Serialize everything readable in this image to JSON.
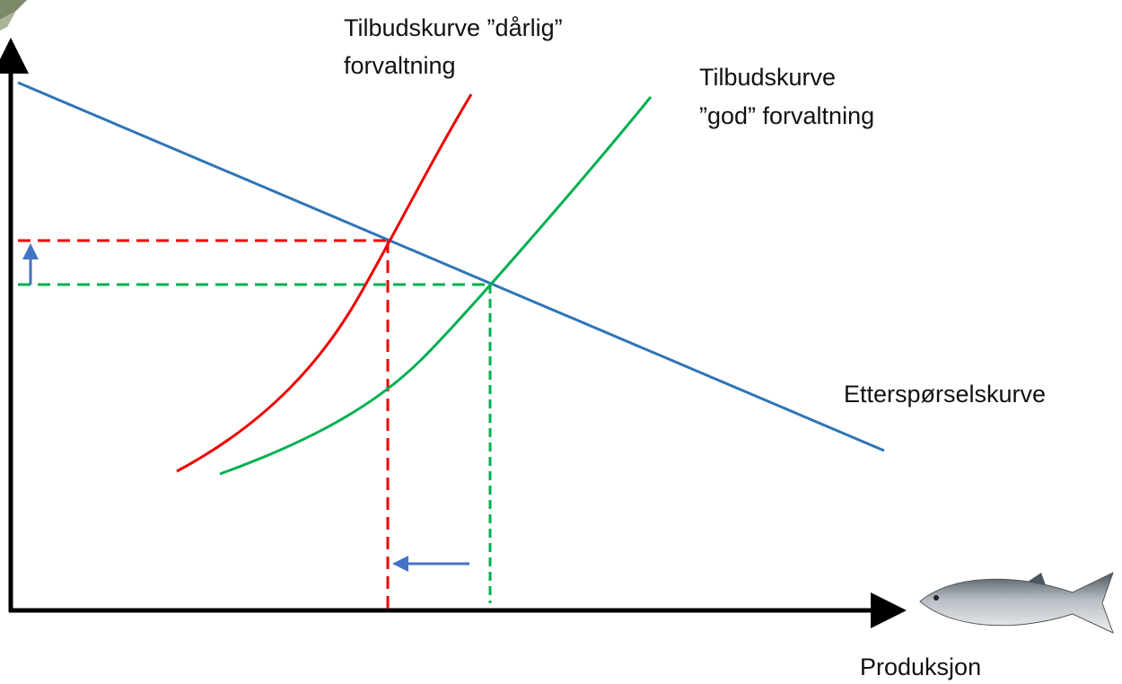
{
  "labels": {
    "supply_bad": [
      "Tilbudskurve ”dårlig”",
      "forvaltning"
    ],
    "supply_good": [
      "Tilbudskurve",
      "”god” forvaltning"
    ],
    "demand": "Etterspørselskurve",
    "x_axis": "Produksjon"
  }
}
